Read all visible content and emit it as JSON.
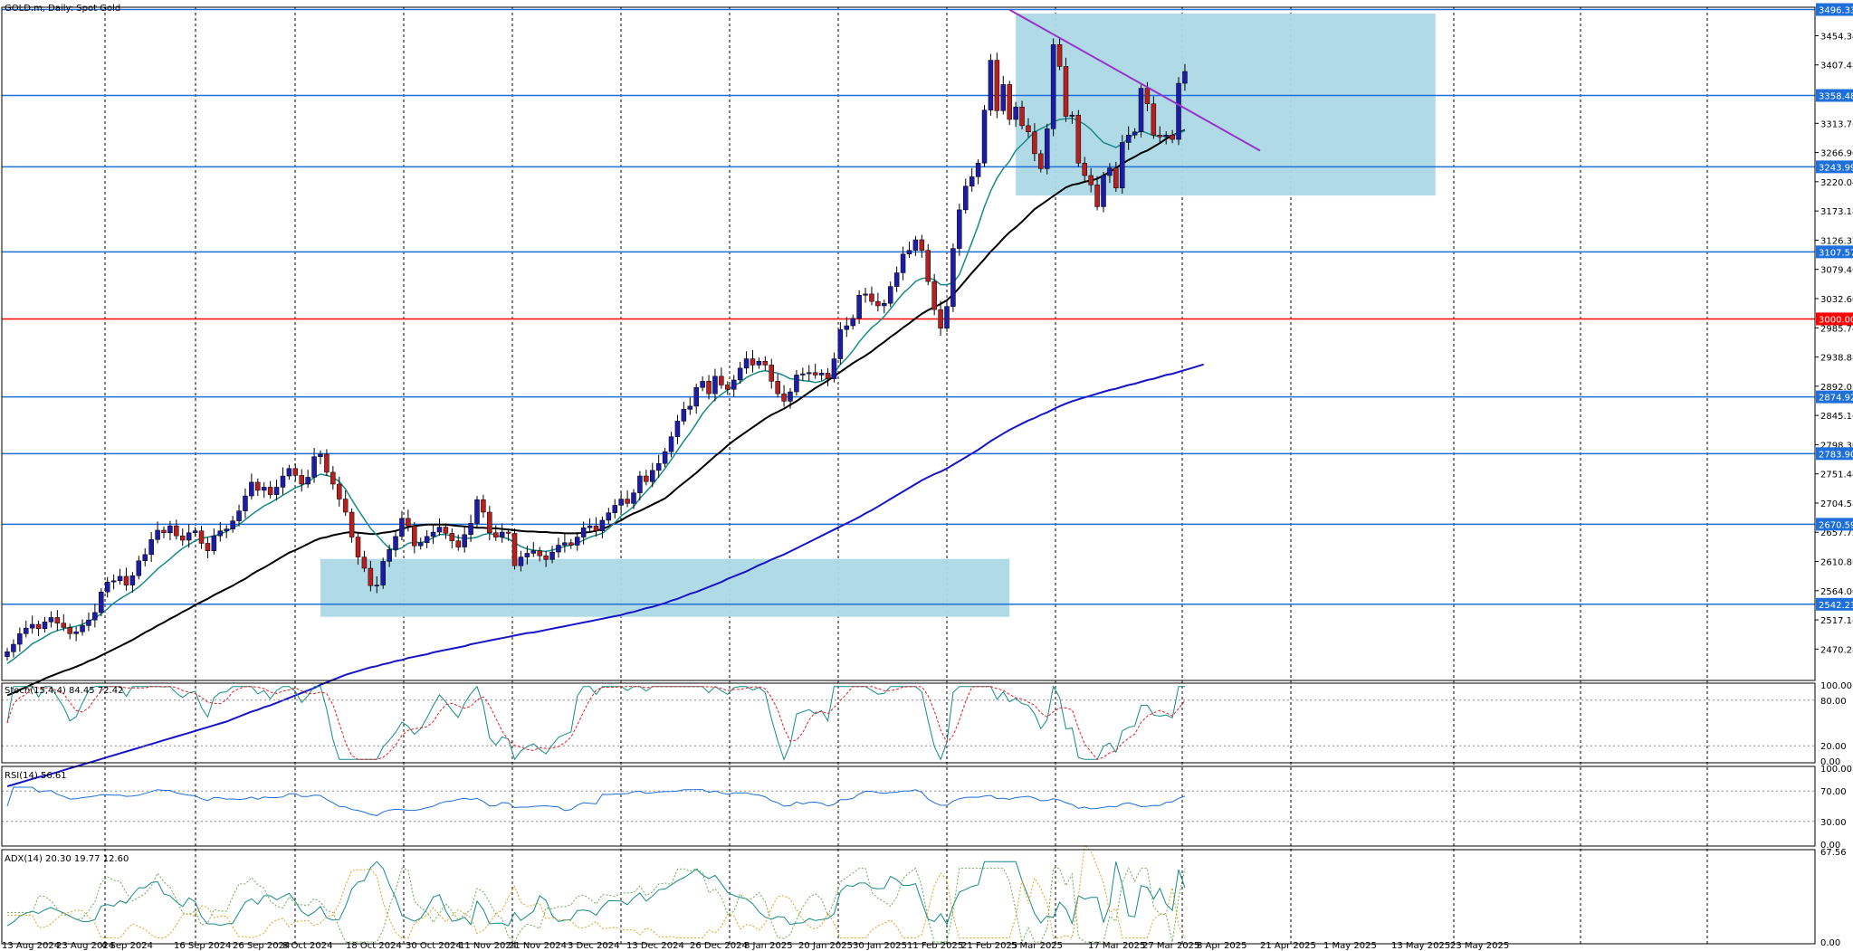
{
  "chart_data": {
    "type": "candlestick",
    "title": "GOLD.m, Daily:  Spot Gold",
    "ylim": [
      2420,
      3500
    ],
    "price_ticks": [
      "3454.34",
      "3407.48",
      "3313.76",
      "3266.90",
      "3220.04",
      "3173.18",
      "3126.32",
      "3079.46",
      "3032.60",
      "2985.74",
      "2938.88",
      "2892.02",
      "2845.16",
      "2798.30",
      "2751.44",
      "2704.58",
      "2657.72",
      "2610.86",
      "2564.00",
      "2517.14",
      "2470.28"
    ],
    "level_labels": [
      "3496.33",
      "3358.48",
      "3243.99",
      "3107.57",
      "3000.00",
      "2874.92",
      "2783.90",
      "2670.59",
      "2542.21"
    ],
    "resistance_color": "#1e6fd9",
    "key_level_color": "#ff0000",
    "date_labels": [
      "13 Aug 2024",
      "23 Aug 2024",
      "4 Sep 2024",
      "16 Sep 2024",
      "26 Sep 2024",
      "8 Oct 2024",
      "18 Oct 2024",
      "30 Oct 2024",
      "11 Nov 2024",
      "21 Nov 2024",
      "3 Dec 2024",
      "13 Dec 2024",
      "26 Dec 2024",
      "8 Jan 2025",
      "20 Jan 2025",
      "30 Jan 2025",
      "11 Feb 2025",
      "21 Feb 2025",
      "5 Mar 2025",
      "17 Mar 2025",
      "27 Mar 2025",
      "8 Apr 2025",
      "21 Apr 2025",
      "1 May 2025",
      "13 May 2025",
      "23 May 2025"
    ],
    "closes": [
      2466,
      2478,
      2495,
      2504,
      2510,
      2503,
      2514,
      2521,
      2512,
      2505,
      2495,
      2498,
      2508,
      2517,
      2529,
      2562,
      2578,
      2580,
      2587,
      2573,
      2588,
      2612,
      2622,
      2646,
      2661,
      2657,
      2668,
      2652,
      2645,
      2657,
      2660,
      2640,
      2628,
      2652,
      2660,
      2663,
      2676,
      2692,
      2716,
      2738,
      2725,
      2730,
      2718,
      2730,
      2748,
      2760,
      2749,
      2735,
      2746,
      2779,
      2783,
      2754,
      2735,
      2711,
      2690,
      2650,
      2618,
      2600,
      2572,
      2573,
      2611,
      2630,
      2651,
      2680,
      2668,
      2636,
      2641,
      2651,
      2658,
      2666,
      2656,
      2644,
      2634,
      2654,
      2672,
      2710,
      2690,
      2657,
      2650,
      2658,
      2656,
      2604,
      2618,
      2624,
      2628,
      2620,
      2614,
      2626,
      2637,
      2641,
      2637,
      2650,
      2665,
      2668,
      2660,
      2677,
      2689,
      2701,
      2711,
      2704,
      2721,
      2748,
      2739,
      2757,
      2768,
      2787,
      2811,
      2836,
      2855,
      2860,
      2890,
      2900,
      2880,
      2908,
      2894,
      2887,
      2902,
      2921,
      2936,
      2926,
      2932,
      2926,
      2900,
      2880,
      2868,
      2883,
      2910,
      2912,
      2914,
      2910,
      2913,
      2904,
      2936,
      2983,
      2989,
      3001,
      3038,
      3040,
      3028,
      3021,
      3025,
      3052,
      3074,
      3104,
      3110,
      3127,
      3110,
      3060,
      3015,
      2985,
      3020,
      3113,
      3175,
      3213,
      3228,
      3250,
      3335,
      3415,
      3334,
      3376,
      3320,
      3340,
      3310,
      3300,
      3265,
      3241,
      3305,
      3440,
      3405,
      3325,
      3327,
      3250,
      3230,
      3215,
      3180,
      3230,
      3242,
      3210,
      3283,
      3295,
      3300,
      3370,
      3345,
      3295,
      3292,
      3295,
      3288,
      3378,
      3397
    ],
    "ma_fast": [
      2447,
      2454,
      2462,
      2470,
      2479,
      2484,
      2490,
      2496,
      2500,
      2503,
      2505,
      2507,
      2510,
      2515,
      2520,
      2527,
      2535,
      2544,
      2551,
      2557,
      2563,
      2570,
      2579,
      2589,
      2599,
      2607,
      2615,
      2624,
      2632,
      2638,
      2644,
      2648,
      2650,
      2652,
      2655,
      2659,
      2665,
      2670,
      2678,
      2686,
      2693,
      2700,
      2705,
      2711,
      2717,
      2723,
      2729,
      2733,
      2738,
      2746,
      2751,
      2749,
      2746,
      2739,
      2727,
      2710,
      2694,
      2679,
      2664,
      2653,
      2642,
      2632,
      2629,
      2633,
      2640,
      2642,
      2641,
      2644,
      2649,
      2654,
      2654,
      2652,
      2649,
      2648,
      2648,
      2650,
      2654,
      2656,
      2653,
      2650,
      2647,
      2641,
      2635,
      2631,
      2629,
      2628,
      2627,
      2629,
      2632,
      2635,
      2637,
      2640,
      2645,
      2650,
      2653,
      2656,
      2664,
      2673,
      2684,
      2691,
      2699,
      2712,
      2723,
      2734,
      2747,
      2760,
      2774,
      2789,
      2804,
      2817,
      2832,
      2848,
      2860,
      2871,
      2879,
      2886,
      2893,
      2898,
      2906,
      2911,
      2915,
      2917,
      2915,
      2913,
      2909,
      2904,
      2903,
      2901,
      2900,
      2898,
      2900,
      2905,
      2913,
      2927,
      2937,
      2949,
      2963,
      2975,
      2986,
      2994,
      3004,
      3016,
      3029,
      3041,
      3050,
      3060,
      3065,
      3066,
      3063,
      3055,
      3055,
      3058,
      3071,
      3097,
      3123,
      3150,
      3180,
      3205,
      3226,
      3241,
      3253,
      3270,
      3280,
      3290,
      3300,
      3305,
      3310,
      3316,
      3320,
      3321,
      3322,
      3318,
      3312,
      3304,
      3293,
      3283,
      3279,
      3275,
      3281,
      3290,
      3297,
      3302,
      3298,
      3294,
      3293,
      3294,
      3294,
      3298,
      3302
    ],
    "ma_mid": [
      2396,
      2400,
      2405,
      2409,
      2414,
      2418,
      2423,
      2427,
      2431,
      2435,
      2438,
      2442,
      2446,
      2451,
      2455,
      2460,
      2465,
      2470,
      2475,
      2480,
      2485,
      2491,
      2497,
      2502,
      2508,
      2513,
      2519,
      2524,
      2530,
      2535,
      2541,
      2546,
      2551,
      2557,
      2562,
      2567,
      2572,
      2578,
      2583,
      2590,
      2596,
      2601,
      2607,
      2613,
      2619,
      2625,
      2629,
      2634,
      2639,
      2644,
      2648,
      2650,
      2653,
      2655,
      2657,
      2658,
      2657,
      2656,
      2655,
      2655,
      2657,
      2658,
      2660,
      2663,
      2666,
      2668,
      2669,
      2670,
      2670,
      2670,
      2670,
      2669,
      2668,
      2667,
      2666,
      2665,
      2665,
      2664,
      2664,
      2663,
      2662,
      2661,
      2660,
      2659,
      2659,
      2658,
      2658,
      2657,
      2657,
      2656,
      2656,
      2656,
      2657,
      2658,
      2660,
      2663,
      2667,
      2672,
      2677,
      2683,
      2688,
      2692,
      2697,
      2702,
      2707,
      2712,
      2720,
      2729,
      2737,
      2745,
      2753,
      2762,
      2771,
      2780,
      2788,
      2797,
      2805,
      2812,
      2819,
      2826,
      2833,
      2840,
      2846,
      2851,
      2856,
      2862,
      2868,
      2875,
      2882,
      2889,
      2895,
      2901,
      2908,
      2915,
      2922,
      2929,
      2935,
      2941,
      2948,
      2956,
      2963,
      2971,
      2978,
      2986,
      2993,
      3001,
      3008,
      3014,
      3019,
      3024,
      3030,
      3039,
      3050,
      3062,
      3074,
      3085,
      3096,
      3108,
      3118,
      3129,
      3139,
      3147,
      3156,
      3166,
      3176,
      3183,
      3190,
      3197,
      3204,
      3211,
      3215,
      3217,
      3220,
      3222,
      3225,
      3230,
      3236,
      3242,
      3249,
      3255,
      3260,
      3266,
      3270,
      3276,
      3282,
      3289,
      3294,
      3299,
      3303
    ],
    "ma_slow": [
      2250,
      2253,
      2256,
      2259,
      2262,
      2265,
      2267,
      2270,
      2273,
      2276,
      2279,
      2282,
      2285,
      2288,
      2291,
      2294,
      2297,
      2300,
      2303,
      2306,
      2309,
      2312,
      2315,
      2318,
      2321,
      2324,
      2327,
      2330,
      2333,
      2336,
      2339,
      2342,
      2345,
      2348,
      2351,
      2354,
      2358,
      2362,
      2366,
      2370,
      2373,
      2377,
      2380,
      2384,
      2388,
      2392,
      2396,
      2400,
      2404,
      2408,
      2413,
      2417,
      2421,
      2425,
      2429,
      2432,
      2435,
      2438,
      2441,
      2443,
      2446,
      2448,
      2451,
      2453,
      2456,
      2458,
      2460,
      2462,
      2465,
      2467,
      2469,
      2471,
      2473,
      2475,
      2478,
      2480,
      2482,
      2484,
      2486,
      2488,
      2490,
      2492,
      2494,
      2496,
      2497,
      2499,
      2501,
      2503,
      2505,
      2507,
      2509,
      2511,
      2513,
      2515,
      2517,
      2519,
      2521,
      2523,
      2525,
      2528,
      2530,
      2533,
      2536,
      2538,
      2541,
      2544,
      2548,
      2551,
      2555,
      2559,
      2562,
      2566,
      2570,
      2574,
      2578,
      2583,
      2587,
      2591,
      2595,
      2600,
      2605,
      2609,
      2614,
      2618,
      2622,
      2627,
      2632,
      2637,
      2642,
      2647,
      2652,
      2657,
      2662,
      2667,
      2672,
      2677,
      2682,
      2688,
      2693,
      2699,
      2705,
      2711,
      2717,
      2723,
      2729,
      2735,
      2741,
      2746,
      2751,
      2755,
      2760,
      2766,
      2772,
      2778,
      2784,
      2790,
      2797,
      2804,
      2810,
      2816,
      2822,
      2827,
      2832,
      2837,
      2841,
      2846,
      2850,
      2855,
      2860,
      2864,
      2868,
      2871,
      2874,
      2877,
      2880,
      2883,
      2886,
      2888,
      2891,
      2894,
      2896,
      2899,
      2902,
      2904,
      2907,
      2910,
      2912,
      2915,
      2918,
      2921,
      2924,
      2927
    ],
    "trendline": {
      "start": [
        160,
        3496
      ],
      "end": [
        200,
        3270
      ]
    },
    "zones": [
      {
        "from": 50,
        "to": 160,
        "low": 2522,
        "high": 2615,
        "color": "#add8e6"
      },
      {
        "from": 161,
        "to": 228,
        "low": 3198,
        "high": 3490,
        "color": "#add8e6"
      }
    ],
    "indicators": {
      "stoch": {
        "label": "Stoch(15,4,4) 84.45 72.42",
        "ticks": [
          "100.00",
          "80.00",
          "20.00",
          "0.00"
        ]
      },
      "rsi": {
        "label": "RSI(14) 56.61",
        "ticks": [
          "100.00",
          "70.00",
          "30.00",
          "0.00"
        ]
      },
      "adx": {
        "label": "ADX(14) 20.30 19.77 12.60",
        "ticks": [
          "67.56",
          "0.00"
        ]
      }
    }
  }
}
